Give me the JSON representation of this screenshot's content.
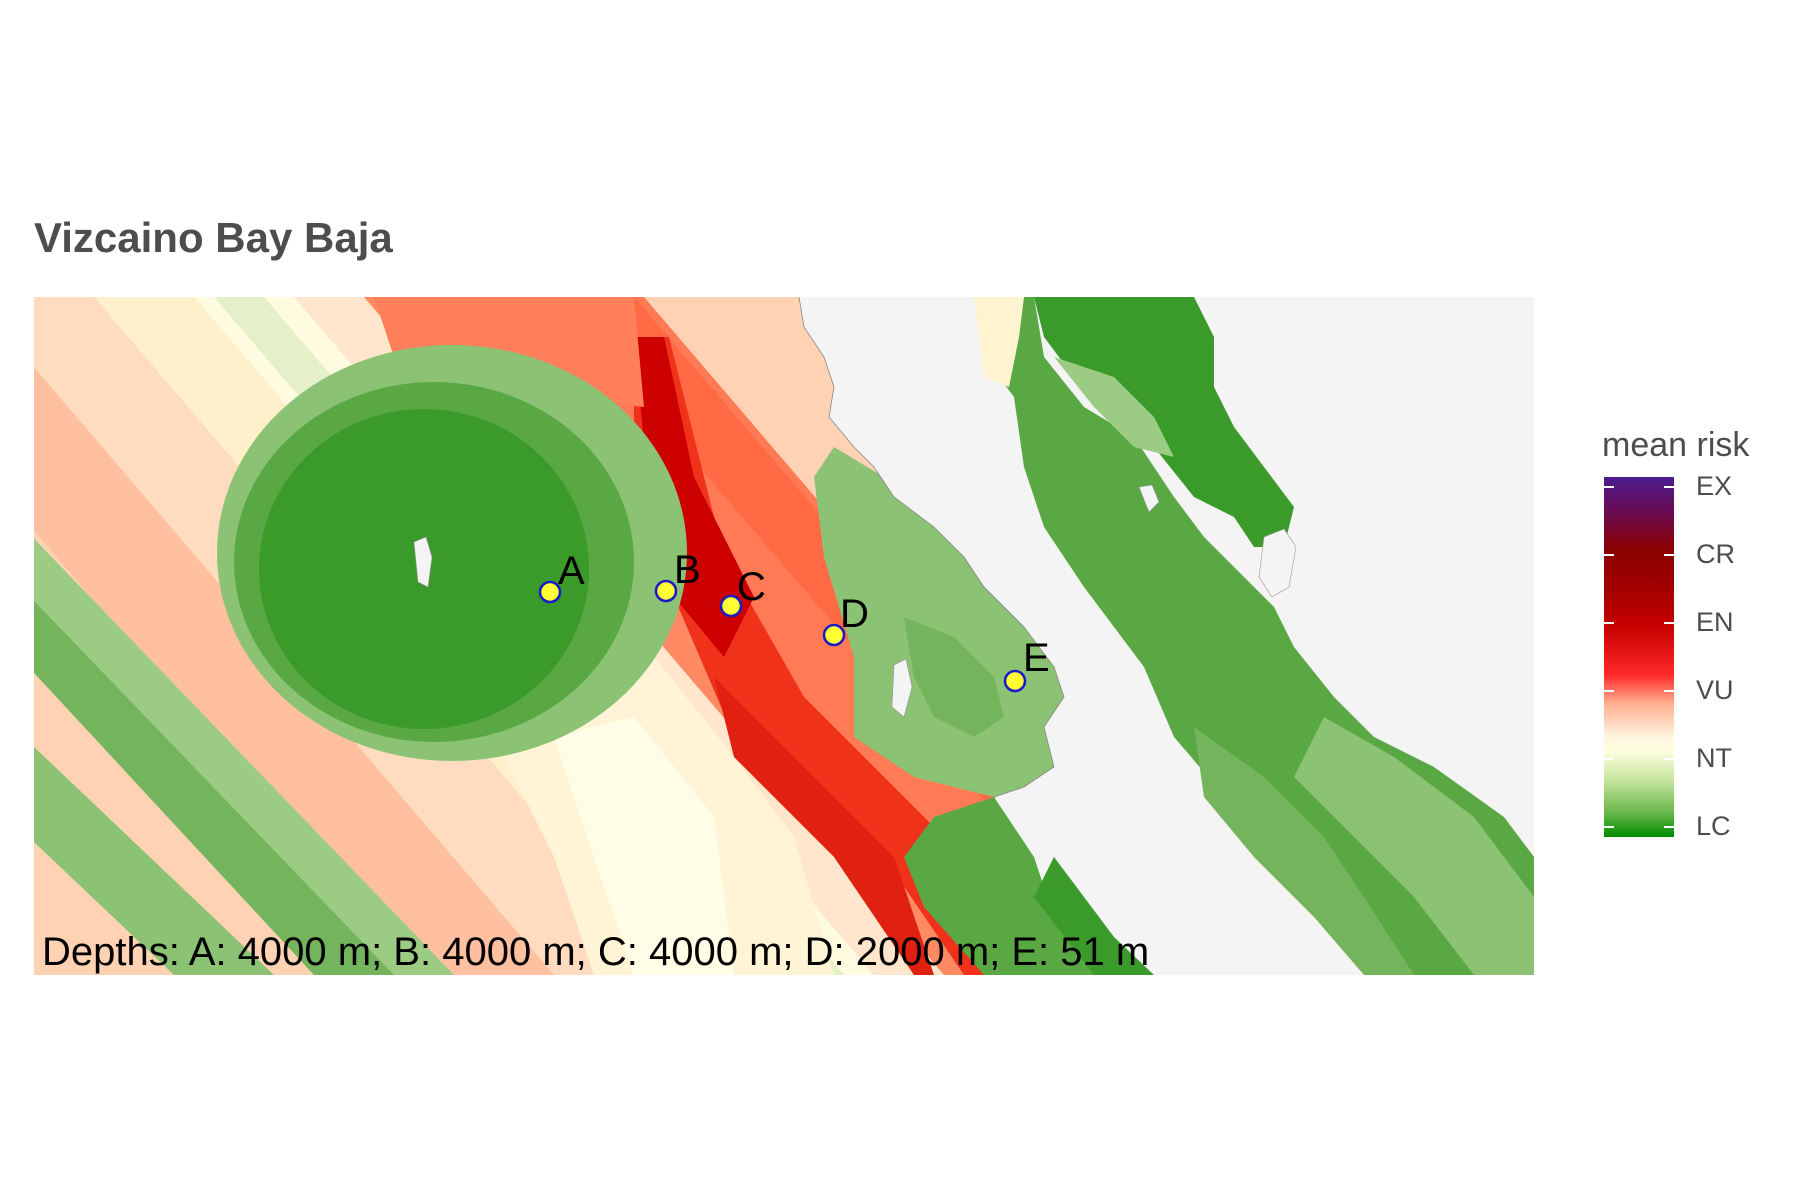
{
  "title": "Vizcaino Bay Baja",
  "caption": "Depths: A: 4000 m; B: 4000 m; C: 4000 m; D: 2000 m; E: 51 m",
  "legend": {
    "title": "mean risk",
    "labels": [
      "EX",
      "CR",
      "EN",
      "VU",
      "NT",
      "LC"
    ],
    "colors": [
      "#4b1d8f",
      "#8b0000",
      "#b20000",
      "#e60000",
      "#ffffe0",
      "#008b00"
    ]
  },
  "sites": [
    {
      "label": "A"
    },
    {
      "label": "B"
    },
    {
      "label": "C"
    },
    {
      "label": "D"
    },
    {
      "label": "E"
    }
  ],
  "colors": {
    "land": "#f4f4f4",
    "site_fill": "#ffff33",
    "site_stroke": "#1a1ac8",
    "green_dark": "#3a9a2a",
    "green_mid": "#5aa844",
    "green_light": "#8cc274",
    "red_dark": "#cc0000",
    "red": "#f03c1e",
    "orange": "#ff7f5a",
    "peach": "#ffc9a8",
    "cream": "#fff3d0"
  }
}
